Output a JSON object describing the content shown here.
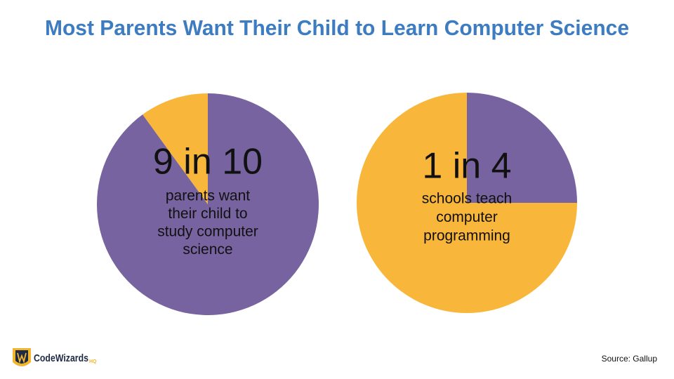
{
  "title": "Most Parents Want Their Child to Learn Computer Science",
  "source": "Source: Gallup",
  "logo": {
    "name": "CodeWizards",
    "suffix": "HQ"
  },
  "chart_data": [
    {
      "type": "pie",
      "values": [
        90,
        10
      ],
      "colors": [
        "#77639f",
        "#f8b63a"
      ],
      "annotation": "9 in 10",
      "caption": [
        "parents want",
        "their child to",
        "study computer",
        "science"
      ]
    },
    {
      "type": "pie",
      "values": [
        25,
        75
      ],
      "colors": [
        "#77639f",
        "#f8b63a"
      ],
      "annotation": "1 in 4",
      "caption": [
        "schools teach",
        "computer",
        "programming"
      ]
    }
  ]
}
